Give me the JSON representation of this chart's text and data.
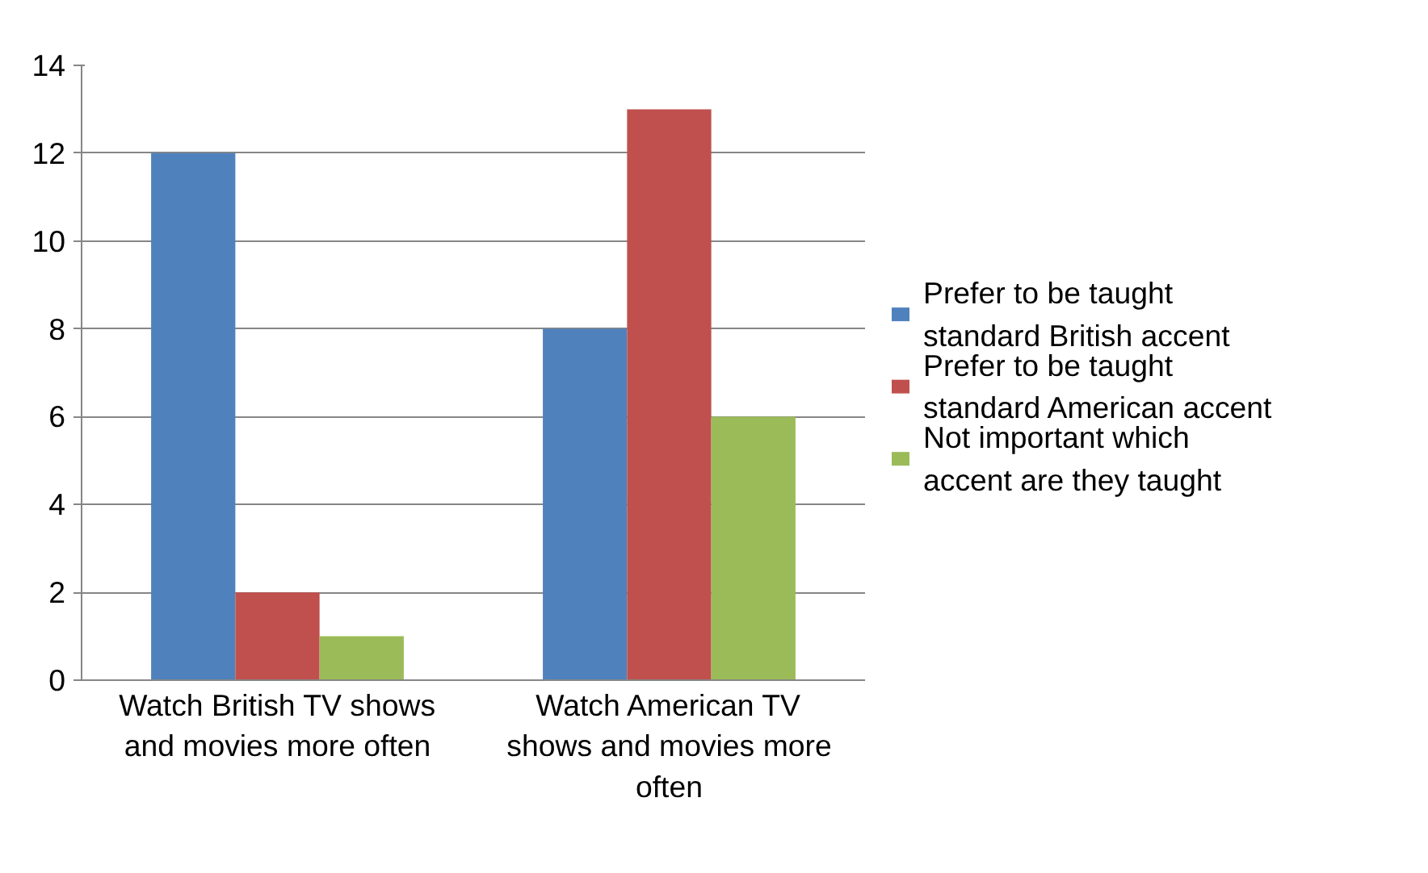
{
  "chart_data": {
    "type": "bar",
    "categories": [
      "Watch British TV shows and movies more often",
      "Watch American TV shows and movies more often"
    ],
    "series": [
      {
        "name": "Prefer to be taught standard British accent",
        "color": "#4f81bd",
        "values": [
          12,
          8
        ]
      },
      {
        "name": "Prefer to be taught standard American accent",
        "color": "#c0504d",
        "values": [
          2,
          13
        ]
      },
      {
        "name": "Not important which accent are they taught",
        "color": "#9bbb59",
        "values": [
          1,
          6
        ]
      }
    ],
    "ylim": [
      0,
      14
    ],
    "yticks": [
      0,
      2,
      4,
      6,
      8,
      10,
      12,
      14
    ],
    "grid": "y",
    "legend": "right"
  }
}
